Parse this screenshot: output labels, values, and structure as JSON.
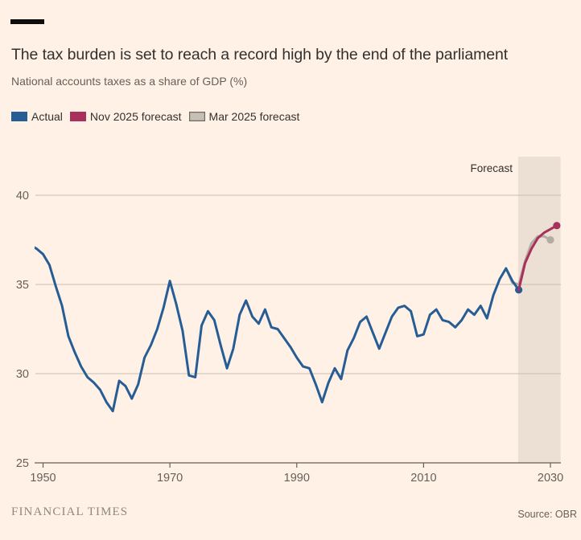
{
  "header": {
    "accent_bar_color": "#0E0D0C"
  },
  "footer": {
    "brand": "FINANCIAL TIMES"
  },
  "chart_data": {
    "type": "line",
    "title": "The tax burden is set to reach a record high by the end of the parliament",
    "subtitle": "National accounts taxes as a share of GDP (%)",
    "source": "Source: OBR",
    "forecast_label": "Forecast",
    "xlabel": "",
    "ylabel": "National accounts taxes as a share of GDP (%)",
    "x_ticks": [
      1950,
      1970,
      1990,
      2010,
      2030
    ],
    "y_ticks": [
      25,
      30,
      35,
      40
    ],
    "xlim": [
      1948,
      2031.6
    ],
    "ylim": [
      25,
      42.2
    ],
    "grid": "horizontal",
    "legend_position": "top",
    "forecast_band": {
      "start": 2024.9,
      "end": 2031.6
    },
    "colors": {
      "background": "#FFF1E5",
      "band": "#EBE0D3",
      "gridline": "#C8BEB2",
      "axis": "#66605B",
      "text": "#33302E"
    },
    "legend": [
      {
        "label": "Actual",
        "swatch": "#265D94",
        "border": null
      },
      {
        "label": "Nov 2025 forecast",
        "swatch": "#A8305D",
        "border": null
      },
      {
        "label": "Mar 2025 forecast",
        "swatch": "#C6BFB3",
        "border": "#6E6860"
      }
    ],
    "series": [
      {
        "id": "actual",
        "name": "Actual",
        "color": "#265D94",
        "end_dot": true,
        "points": [
          [
            1948,
            37.2
          ],
          [
            1949,
            37.0
          ],
          [
            1950,
            36.7
          ],
          [
            1951,
            36.1
          ],
          [
            1952,
            34.9
          ],
          [
            1953,
            33.8
          ],
          [
            1954,
            32.1
          ],
          [
            1955,
            31.2
          ],
          [
            1956,
            30.4
          ],
          [
            1957,
            29.8
          ],
          [
            1958,
            29.5
          ],
          [
            1959,
            29.1
          ],
          [
            1960,
            28.4
          ],
          [
            1961,
            27.9
          ],
          [
            1962,
            29.6
          ],
          [
            1963,
            29.3
          ],
          [
            1964,
            28.6
          ],
          [
            1965,
            29.4
          ],
          [
            1966,
            30.9
          ],
          [
            1967,
            31.6
          ],
          [
            1968,
            32.5
          ],
          [
            1969,
            33.7
          ],
          [
            1970,
            35.2
          ],
          [
            1971,
            33.9
          ],
          [
            1972,
            32.4
          ],
          [
            1973,
            29.9
          ],
          [
            1974,
            29.8
          ],
          [
            1975,
            32.7
          ],
          [
            1976,
            33.5
          ],
          [
            1977,
            33.0
          ],
          [
            1978,
            31.6
          ],
          [
            1979,
            30.3
          ],
          [
            1980,
            31.4
          ],
          [
            1981,
            33.3
          ],
          [
            1982,
            34.1
          ],
          [
            1983,
            33.2
          ],
          [
            1984,
            32.8
          ],
          [
            1985,
            33.6
          ],
          [
            1986,
            32.6
          ],
          [
            1987,
            32.5
          ],
          [
            1988,
            32.0
          ],
          [
            1989,
            31.5
          ],
          [
            1990,
            30.9
          ],
          [
            1991,
            30.4
          ],
          [
            1992,
            30.3
          ],
          [
            1993,
            29.4
          ],
          [
            1994,
            28.4
          ],
          [
            1995,
            29.5
          ],
          [
            1996,
            30.3
          ],
          [
            1997,
            29.7
          ],
          [
            1998,
            31.3
          ],
          [
            1999,
            32.0
          ],
          [
            2000,
            32.9
          ],
          [
            2001,
            33.2
          ],
          [
            2002,
            32.3
          ],
          [
            2003,
            31.4
          ],
          [
            2004,
            32.3
          ],
          [
            2005,
            33.2
          ],
          [
            2006,
            33.7
          ],
          [
            2007,
            33.8
          ],
          [
            2008,
            33.5
          ],
          [
            2009,
            32.1
          ],
          [
            2010,
            32.2
          ],
          [
            2011,
            33.3
          ],
          [
            2012,
            33.6
          ],
          [
            2013,
            33.0
          ],
          [
            2014,
            32.9
          ],
          [
            2015,
            32.6
          ],
          [
            2016,
            33.0
          ],
          [
            2017,
            33.6
          ],
          [
            2018,
            33.3
          ],
          [
            2019,
            33.8
          ],
          [
            2020,
            33.1
          ],
          [
            2021,
            34.4
          ],
          [
            2022,
            35.3
          ],
          [
            2023,
            35.9
          ],
          [
            2024,
            35.2
          ],
          [
            2025,
            34.7
          ]
        ]
      },
      {
        "id": "nov-2025-forecast",
        "name": "Nov 2025 forecast",
        "color": "#A8305D",
        "end_dot": true,
        "points": [
          [
            2025,
            34.7
          ],
          [
            2026,
            36.2
          ],
          [
            2027,
            37.0
          ],
          [
            2028,
            37.6
          ],
          [
            2029,
            37.9
          ],
          [
            2030,
            38.1
          ],
          [
            2031,
            38.3
          ]
        ]
      },
      {
        "id": "mar-2025-forecast",
        "name": "Mar 2025 forecast",
        "color": "#B3ACA2",
        "end_dot": true,
        "points": [
          [
            2023,
            35.9
          ],
          [
            2024,
            35.1
          ],
          [
            2025,
            35.0
          ],
          [
            2026,
            36.3
          ],
          [
            2027,
            37.3
          ],
          [
            2028,
            37.7
          ],
          [
            2029,
            37.7
          ],
          [
            2030,
            37.5
          ]
        ]
      }
    ]
  }
}
